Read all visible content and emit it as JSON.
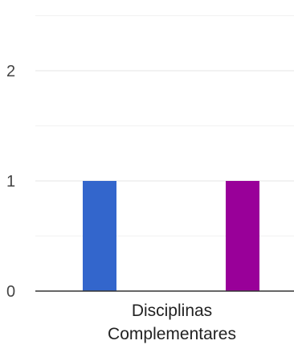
{
  "chart_data": {
    "type": "bar",
    "categories": [
      "Disciplinas\nComplementares"
    ],
    "category_lines": [
      "Disciplinas",
      "Complementares"
    ],
    "series": [
      {
        "values": [
          1
        ],
        "color": "#3366cc"
      },
      {
        "values": [
          1
        ],
        "color": "#990099"
      }
    ],
    "ylim": [
      0,
      2.5
    ],
    "yticks": [
      {
        "value": 0,
        "label": "0"
      },
      {
        "value": 1,
        "label": "1"
      },
      {
        "value": 2,
        "label": "2"
      }
    ],
    "minor_gridlines": [
      0.5,
      1.5,
      2.5
    ],
    "grid": true,
    "legend": "none",
    "colors": {
      "gridline": "#e6e6e6",
      "minor_gridline": "#f2f2f2",
      "baseline": "#333333",
      "tick_label": "#444444"
    }
  }
}
